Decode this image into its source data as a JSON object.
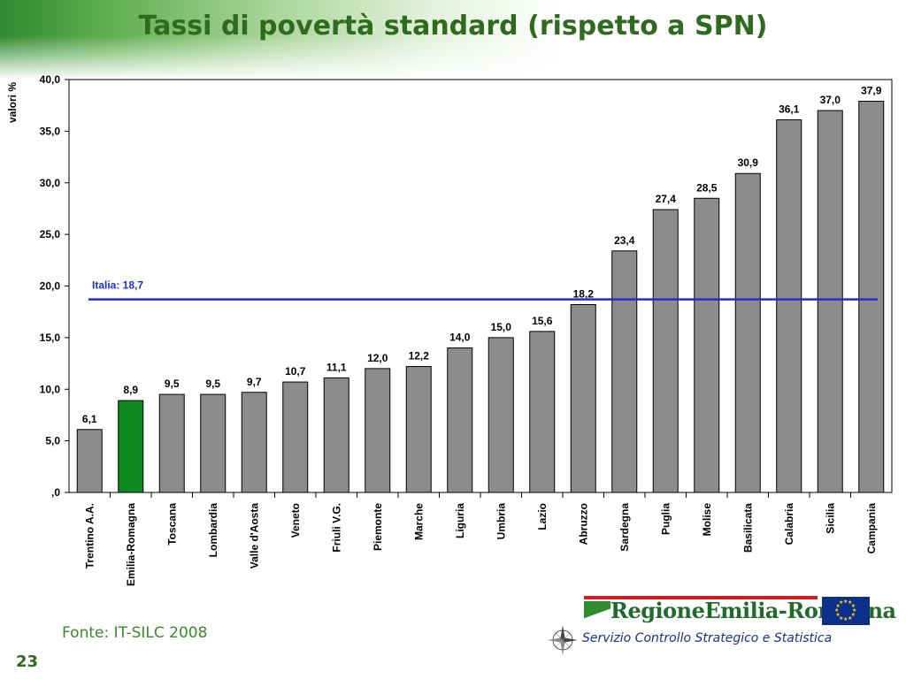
{
  "page": {
    "title": "Tassi di povertà standard (rispetto a SPN)",
    "source": "Fonte: IT-SILC 2008",
    "page_number": "23",
    "logo_text": "RegioneEmilia-Romagna",
    "department": "Servizio Controllo Strategico e Statistica",
    "icons": [
      "compass-rose-icon",
      "eu-flag-icon"
    ]
  },
  "chart_data": {
    "type": "bar",
    "title": "Tassi di povertà standard (rispetto a SPN)",
    "ylabel": "valori %",
    "xlabel": "",
    "ylim": [
      0,
      40
    ],
    "yticks": [
      0,
      5,
      10,
      15,
      20,
      25,
      30,
      35,
      40
    ],
    "ytick_labels": [
      ",0",
      "5,0",
      "10,0",
      "15,0",
      "20,0",
      "25,0",
      "30,0",
      "35,0",
      "40,0"
    ],
    "grid": false,
    "categories": [
      "Trentino A.A.",
      "Emilia-Romagna",
      "Toscana",
      "Lombardia",
      "Valle d'Aosta",
      "Veneto",
      "Friuli V.G.",
      "Piemonte",
      "Marche",
      "Liguria",
      "Umbria",
      "Lazio",
      "Abruzzo",
      "Sardegna",
      "Puglia",
      "Molise",
      "Basilicata",
      "Calabria",
      "Sicilia",
      "Campania"
    ],
    "values": [
      6.1,
      8.9,
      9.5,
      9.5,
      9.7,
      10.7,
      11.1,
      12.0,
      12.2,
      14.0,
      15.0,
      15.6,
      18.2,
      23.4,
      27.4,
      28.5,
      30.9,
      36.1,
      37.0,
      37.9
    ],
    "value_labels": [
      "6,1",
      "8,9",
      "9,5",
      "9,5",
      "9,7",
      "10,7",
      "11,1",
      "12,0",
      "12,2",
      "14,0",
      "15,0",
      "15,6",
      "18,2",
      "23,4",
      "27,4",
      "28,5",
      "30,9",
      "36,1",
      "37,0",
      "37,9"
    ],
    "bar_color": "#8c8c8c",
    "highlight_category": "Emilia-Romagna",
    "highlight_color": "#0f8a1e",
    "reference_line": {
      "label": "Italia: 18,7",
      "value": 18.7,
      "color": "#1f2fd0"
    }
  }
}
